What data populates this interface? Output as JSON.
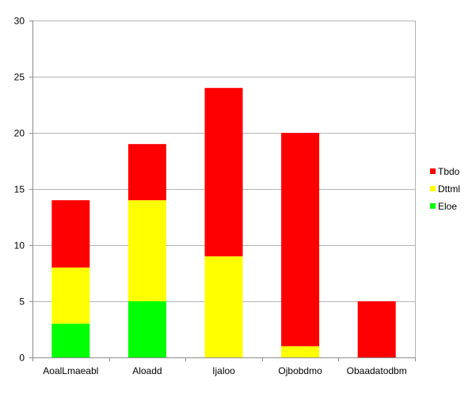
{
  "chart_data": {
    "type": "bar",
    "stacked": true,
    "categories": [
      "AoalLmaeabl",
      "Aloadd",
      "Ijaloo",
      "Ojbobdmo",
      "Obaadatodbm"
    ],
    "series": [
      {
        "name": "Eloe",
        "color": "#00ff00",
        "values": [
          3,
          5,
          0,
          0,
          0
        ]
      },
      {
        "name": "Dttml",
        "color": "#ffff00",
        "values": [
          5,
          9,
          9,
          1,
          0
        ]
      },
      {
        "name": "Tbdo",
        "color": "#ff0000",
        "values": [
          6,
          5,
          15,
          19,
          5
        ]
      }
    ],
    "legend_order": [
      "Tbdo",
      "Dttml",
      "Eloe"
    ],
    "title": "",
    "xlabel": "",
    "ylabel": "",
    "ylim": [
      0,
      30
    ],
    "yticks": [
      0,
      5,
      10,
      15,
      20,
      25,
      30
    ],
    "grid": true,
    "legend_position": "right"
  }
}
